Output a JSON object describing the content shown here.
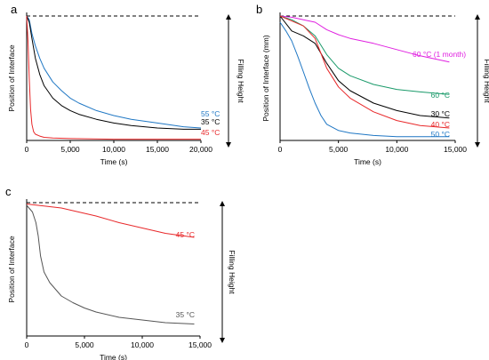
{
  "chart_data": [
    {
      "panel_label": "a",
      "type": "line",
      "xlabel": "Time (s)",
      "ylabel": "Position of Interface",
      "right_label": "Filling Height",
      "xlim": [
        0,
        20000
      ],
      "ylim": [
        0,
        1
      ],
      "xticks": [
        0,
        5000,
        10000,
        15000,
        20000
      ],
      "xtick_labels": [
        "0",
        "5,000",
        "10,000",
        "15,000",
        "20,000"
      ],
      "reference_line": {
        "y": 1.0,
        "style": "dashed",
        "color": "#000000"
      },
      "series": [
        {
          "name": "55 °C",
          "color": "#1f77c4",
          "x": [
            0,
            300,
            600,
            1000,
            1500,
            2000,
            3000,
            4000,
            5000,
            6000,
            8000,
            10000,
            12000,
            15000,
            18000,
            20000
          ],
          "y": [
            1.0,
            0.97,
            0.86,
            0.76,
            0.66,
            0.58,
            0.47,
            0.4,
            0.34,
            0.3,
            0.24,
            0.2,
            0.17,
            0.14,
            0.11,
            0.1
          ]
        },
        {
          "name": "35 °C",
          "color": "#000000",
          "x": [
            0,
            300,
            600,
            1000,
            1500,
            2000,
            3000,
            4000,
            5000,
            6000,
            8000,
            10000,
            12000,
            15000,
            18000,
            20000
          ],
          "y": [
            1.0,
            0.95,
            0.82,
            0.66,
            0.53,
            0.44,
            0.34,
            0.28,
            0.24,
            0.21,
            0.17,
            0.14,
            0.12,
            0.1,
            0.09,
            0.09
          ]
        },
        {
          "name": "45 °C",
          "color": "#e8282a",
          "x": [
            0,
            150,
            300,
            450,
            600,
            800,
            1000,
            1500,
            2000,
            3000,
            5000,
            10000,
            15000,
            20000
          ],
          "y": [
            1.0,
            0.8,
            0.5,
            0.25,
            0.13,
            0.07,
            0.05,
            0.035,
            0.025,
            0.02,
            0.015,
            0.01,
            0.01,
            0.01
          ]
        }
      ]
    },
    {
      "panel_label": "b",
      "type": "line",
      "xlabel": "Time (s)",
      "ylabel": "Position of Interface (mm)",
      "right_label": "Filling Height",
      "xlim": [
        0,
        15000
      ],
      "ylim": [
        0,
        1
      ],
      "xticks": [
        0,
        5000,
        10000,
        15000
      ],
      "xtick_labels": [
        "0",
        "5,000",
        "10,000",
        "15,000"
      ],
      "reference_line": {
        "y": 1.0,
        "style": "dashed",
        "color": "#000000"
      },
      "series": [
        {
          "name": "60 °C (1 month)",
          "color": "#e020e0",
          "x": [
            0,
            1000,
            2000,
            3000,
            4000,
            5000,
            6000,
            8000,
            10000,
            12000,
            14500
          ],
          "y": [
            1.0,
            0.99,
            0.97,
            0.95,
            0.89,
            0.85,
            0.82,
            0.78,
            0.73,
            0.68,
            0.63
          ]
        },
        {
          "name": "60 °C",
          "color": "#1a9a6a",
          "x": [
            0,
            1000,
            2000,
            3000,
            4000,
            5000,
            6000,
            8000,
            10000,
            12000,
            14500
          ],
          "y": [
            1.0,
            0.97,
            0.92,
            0.84,
            0.69,
            0.58,
            0.52,
            0.45,
            0.41,
            0.39,
            0.37
          ]
        },
        {
          "name": "30 °C",
          "color": "#000000",
          "x": [
            0,
            1000,
            2000,
            3000,
            4000,
            5000,
            6000,
            8000,
            10000,
            12000,
            14500
          ],
          "y": [
            1.0,
            0.88,
            0.84,
            0.78,
            0.62,
            0.48,
            0.4,
            0.3,
            0.24,
            0.2,
            0.18
          ]
        },
        {
          "name": "40 °C",
          "color": "#e8282a",
          "x": [
            0,
            1000,
            2000,
            3000,
            4000,
            5000,
            6000,
            8000,
            10000,
            12000,
            14500
          ],
          "y": [
            1.0,
            0.96,
            0.92,
            0.82,
            0.58,
            0.43,
            0.34,
            0.23,
            0.16,
            0.12,
            0.1
          ]
        },
        {
          "name": "50 °C",
          "color": "#1f77c4",
          "x": [
            0,
            500,
            1000,
            1500,
            2000,
            2500,
            3000,
            3500,
            4000,
            5000,
            6000,
            8000,
            10000,
            12000,
            14500
          ],
          "y": [
            0.95,
            0.88,
            0.8,
            0.68,
            0.55,
            0.42,
            0.3,
            0.2,
            0.13,
            0.08,
            0.06,
            0.04,
            0.03,
            0.03,
            0.03
          ]
        }
      ]
    },
    {
      "panel_label": "c",
      "type": "line",
      "xlabel": "Time (s)",
      "ylabel": "Position of Interface",
      "right_label": "Filling Height",
      "xlim": [
        0,
        15000
      ],
      "ylim": [
        0,
        1
      ],
      "xticks": [
        0,
        5000,
        10000,
        15000
      ],
      "xtick_labels": [
        "0",
        "5,000",
        "10,000",
        "15,000"
      ],
      "reference_line": {
        "y": 1.0,
        "style": "dashed",
        "color": "#000000"
      },
      "series": [
        {
          "name": "45 °C",
          "color": "#e8282a",
          "x": [
            0,
            1000,
            2000,
            3000,
            4000,
            5000,
            6000,
            8000,
            10000,
            12000,
            14500
          ],
          "y": [
            0.99,
            0.98,
            0.97,
            0.96,
            0.94,
            0.92,
            0.9,
            0.85,
            0.81,
            0.77,
            0.74
          ]
        },
        {
          "name": "35 °C",
          "color": "#555555",
          "x": [
            0,
            500,
            800,
            1000,
            1200,
            1500,
            2000,
            3000,
            4000,
            5000,
            6000,
            8000,
            10000,
            12000,
            14500
          ],
          "y": [
            0.98,
            0.93,
            0.85,
            0.75,
            0.6,
            0.48,
            0.4,
            0.3,
            0.25,
            0.21,
            0.18,
            0.14,
            0.12,
            0.1,
            0.09
          ]
        }
      ]
    }
  ]
}
